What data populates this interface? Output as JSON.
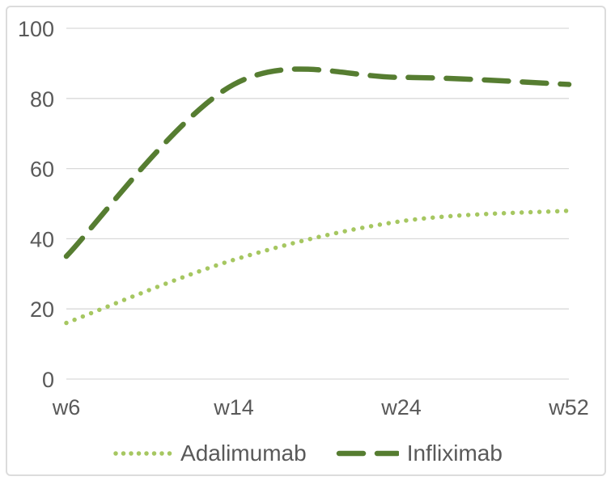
{
  "frame": {
    "background": "#ffffff",
    "border_color": "#dcdcdc"
  },
  "chart_data": {
    "type": "line",
    "title": "",
    "xlabel": "",
    "ylabel": "",
    "categories": [
      "w6",
      "w14",
      "w24",
      "w52"
    ],
    "series": [
      {
        "name": "Adalimumab",
        "values": [
          16,
          34,
          45,
          48
        ],
        "color": "#a6c761",
        "line_style": "dotted"
      },
      {
        "name": "Infliximab",
        "values": [
          35,
          84,
          86,
          84
        ],
        "color": "#567d31",
        "line_style": "dashed"
      }
    ],
    "ylim": [
      0,
      100
    ],
    "yticks": [
      0,
      20,
      40,
      60,
      80,
      100
    ],
    "grid": true,
    "smooth": true,
    "gridline_color": "#d9d9d9",
    "tick_label_color": "#595959",
    "legend_position": "bottom"
  }
}
